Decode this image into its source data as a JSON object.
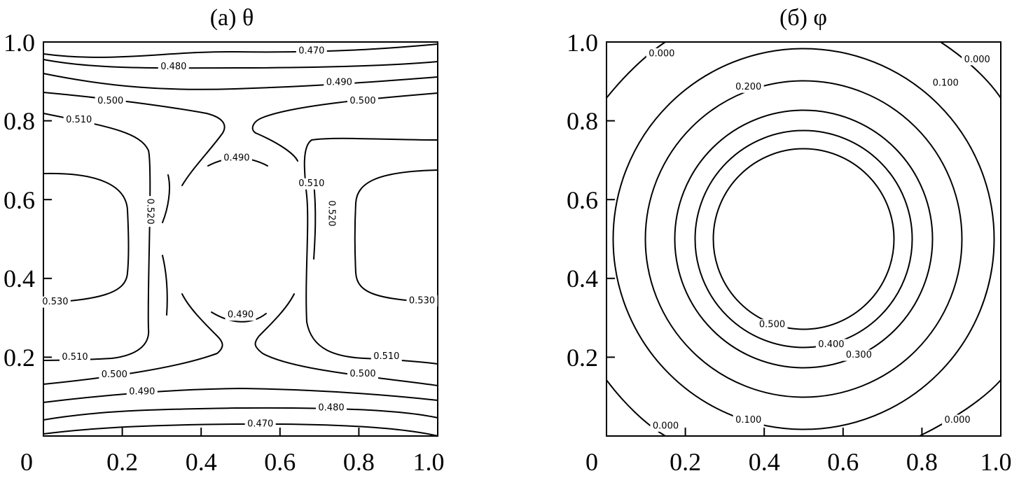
{
  "chart_data": [
    {
      "type": "contour",
      "title": "(a) θ",
      "xlabel": "",
      "ylabel": "",
      "xlim": [
        0,
        1.0
      ],
      "ylim": [
        0,
        1.0
      ],
      "xticks": [
        "0",
        "0.2",
        "0.4",
        "0.6",
        "0.8",
        "1.0"
      ],
      "yticks": [
        "0.2",
        "0.4",
        "0.6",
        "0.8",
        "1.0"
      ],
      "grid": false,
      "levels": [
        {
          "value": "0.470",
          "labels": [
            [
              0.68,
              0.977
            ],
            [
              0.55,
              0.03
            ]
          ]
        },
        {
          "value": "0.480",
          "labels": [
            [
              0.33,
              0.937
            ],
            [
              0.73,
              0.071
            ]
          ]
        },
        {
          "value": "0.490",
          "labels": [
            [
              0.75,
              0.897
            ],
            [
              0.25,
              0.112
            ],
            [
              0.49,
              0.705
            ],
            [
              0.5,
              0.307
            ]
          ]
        },
        {
          "value": "0.500",
          "labels": [
            [
              0.17,
              0.85
            ],
            [
              0.81,
              0.85
            ],
            [
              0.18,
              0.155
            ],
            [
              0.81,
              0.157
            ]
          ]
        },
        {
          "value": "0.510",
          "labels": [
            [
              0.09,
              0.802
            ],
            [
              0.08,
              0.2
            ],
            [
              0.68,
              0.64
            ],
            [
              0.87,
              0.202
            ]
          ]
        },
        {
          "value": "0.520",
          "labels": [
            [
              0.27,
              0.57
            ],
            [
              0.73,
              0.565
            ]
          ]
        },
        {
          "value": "0.530",
          "labels": [
            [
              0.03,
              0.34
            ],
            [
              0.96,
              0.343
            ]
          ]
        }
      ]
    },
    {
      "type": "contour",
      "title": "(б) φ",
      "xlabel": "",
      "ylabel": "",
      "xlim": [
        0,
        1.0
      ],
      "ylim": [
        0,
        1.0
      ],
      "xticks": [
        "0",
        "0.2",
        "0.4",
        "0.6",
        "0.8",
        "1.0"
      ],
      "yticks": [
        "0.2",
        "0.4",
        "0.6",
        "0.8",
        "1.0"
      ],
      "grid": false,
      "levels": [
        {
          "value": "0.000",
          "labels": [
            [
              0.14,
              0.97
            ],
            [
              0.94,
              0.955
            ],
            [
              0.15,
              0.025
            ],
            [
              0.89,
              0.04
            ]
          ]
        },
        {
          "value": "0.100",
          "labels": [
            [
              0.86,
              0.895
            ],
            [
              0.36,
              0.04
            ]
          ]
        },
        {
          "value": "0.200",
          "labels": [
            [
              0.36,
              0.885
            ]
          ]
        },
        {
          "value": "0.300",
          "labels": [
            [
              0.64,
              0.205
            ]
          ]
        },
        {
          "value": "0.400",
          "labels": [
            [
              0.57,
              0.232
            ]
          ]
        },
        {
          "value": "0.500",
          "labels": [
            [
              0.42,
              0.282
            ]
          ]
        }
      ]
    }
  ]
}
